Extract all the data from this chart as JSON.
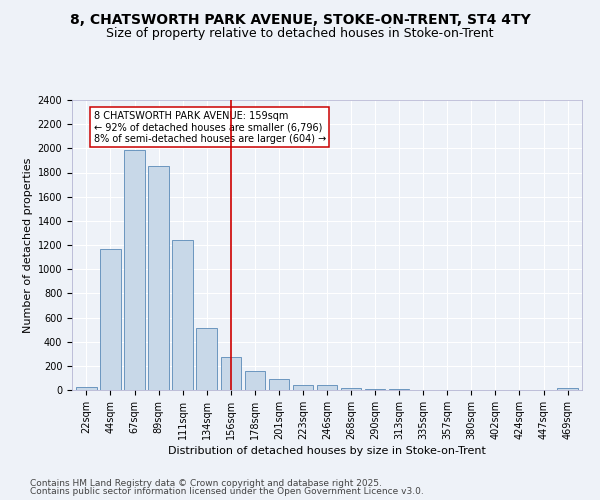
{
  "title1": "8, CHATSWORTH PARK AVENUE, STOKE-ON-TRENT, ST4 4TY",
  "title2": "Size of property relative to detached houses in Stoke-on-Trent",
  "xlabel": "Distribution of detached houses by size in Stoke-on-Trent",
  "ylabel": "Number of detached properties",
  "categories": [
    "22sqm",
    "44sqm",
    "67sqm",
    "89sqm",
    "111sqm",
    "134sqm",
    "156sqm",
    "178sqm",
    "201sqm",
    "223sqm",
    "246sqm",
    "268sqm",
    "290sqm",
    "313sqm",
    "335sqm",
    "357sqm",
    "380sqm",
    "402sqm",
    "424sqm",
    "447sqm",
    "469sqm"
  ],
  "values": [
    28,
    1170,
    1990,
    1855,
    1240,
    515,
    275,
    155,
    90,
    45,
    42,
    18,
    12,
    8,
    3,
    2,
    2,
    1,
    0,
    0,
    18
  ],
  "bar_color": "#c8d8e8",
  "bar_edge_color": "#5a8ab8",
  "vline_x": 6,
  "vline_color": "#cc0000",
  "annotation_text": "8 CHATSWORTH PARK AVENUE: 159sqm\n← 92% of detached houses are smaller (6,796)\n8% of semi-detached houses are larger (604) →",
  "annotation_box_color": "#ffffff",
  "annotation_box_edge": "#cc0000",
  "ylim": [
    0,
    2400
  ],
  "yticks": [
    0,
    200,
    400,
    600,
    800,
    1000,
    1200,
    1400,
    1600,
    1800,
    2000,
    2200,
    2400
  ],
  "footer1": "Contains HM Land Registry data © Crown copyright and database right 2025.",
  "footer2": "Contains public sector information licensed under the Open Government Licence v3.0.",
  "bg_color": "#eef2f8",
  "plot_bg_color": "#eef2f8",
  "title_fontsize": 10,
  "subtitle_fontsize": 9,
  "axis_fontsize": 8,
  "tick_fontsize": 7,
  "footer_fontsize": 6.5
}
